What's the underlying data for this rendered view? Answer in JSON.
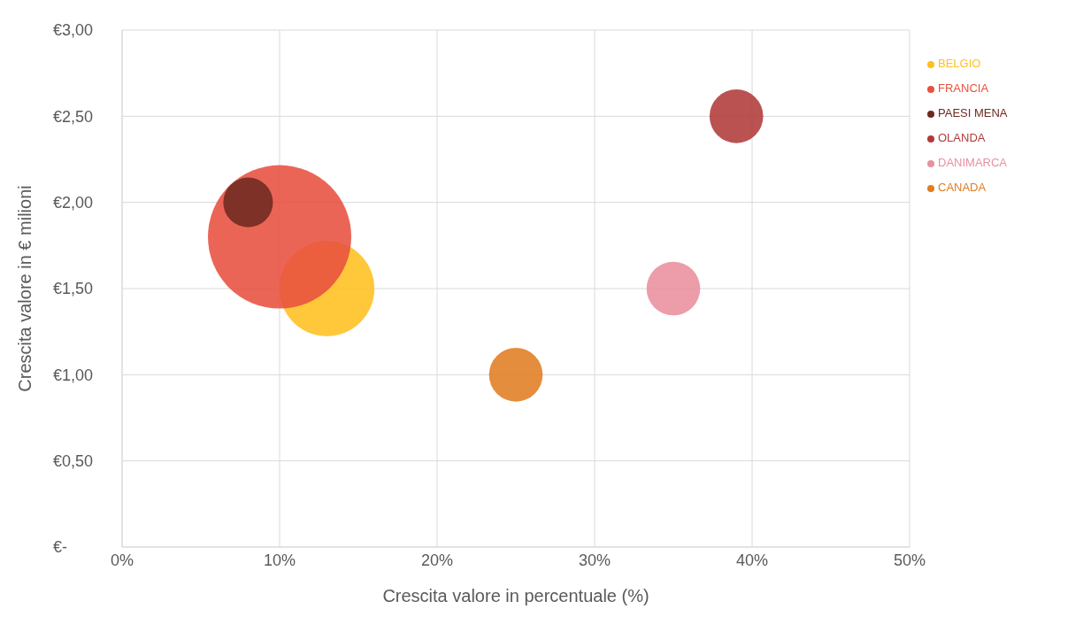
{
  "chart_data": {
    "type": "bubble",
    "xlabel": "Crescita valore in percentuale (%)",
    "ylabel": "Crescita valore in € milioni",
    "xlim": [
      0,
      50
    ],
    "xticks": [
      {
        "value": 0,
        "label": "0%"
      },
      {
        "value": 10,
        "label": "10%"
      },
      {
        "value": 20,
        "label": "20%"
      },
      {
        "value": 30,
        "label": "30%"
      },
      {
        "value": 40,
        "label": "40%"
      },
      {
        "value": 50,
        "label": "50%"
      }
    ],
    "ylim": [
      0,
      3
    ],
    "yticks": [
      {
        "value": 0,
        "label": "€-"
      },
      {
        "value": 0.5,
        "label": "€0,50"
      },
      {
        "value": 1,
        "label": "€1,00"
      },
      {
        "value": 1.5,
        "label": "€1,50"
      },
      {
        "value": 2,
        "label": "€2,00"
      },
      {
        "value": 2.5,
        "label": "€2,50"
      },
      {
        "value": 3,
        "label": "€3,00"
      }
    ],
    "grid": true,
    "legend": "right",
    "series": [
      {
        "name": "BELGIO",
        "color": "#ffbf1f",
        "x": [
          13
        ],
        "values": [
          1.5
        ],
        "sizes": [
          0.44
        ]
      },
      {
        "name": "FRANCIA",
        "color": "#e8503f",
        "x": [
          10
        ],
        "values": [
          1.8
        ],
        "sizes": [
          1
        ]
      },
      {
        "name": "PAESI MENA",
        "color": "#6e2a20",
        "x": [
          8
        ],
        "values": [
          2.0
        ],
        "sizes": [
          0.12
        ]
      },
      {
        "name": "OLANDA",
        "color": "#b23a3a",
        "x": [
          39
        ],
        "values": [
          2.5
        ],
        "sizes": [
          0.14
        ]
      },
      {
        "name": "DANIMARCA",
        "color": "#e9909d",
        "x": [
          35
        ],
        "values": [
          1.5
        ],
        "sizes": [
          0.14
        ]
      },
      {
        "name": "CANADA",
        "color": "#e07d22",
        "x": [
          25
        ],
        "values": [
          1.0
        ],
        "sizes": [
          0.14
        ]
      }
    ]
  }
}
